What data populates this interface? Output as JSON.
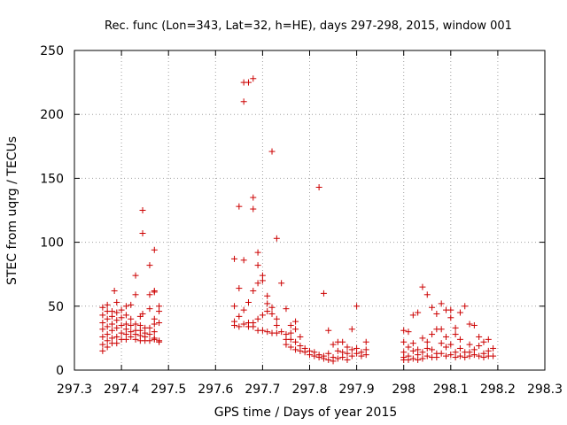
{
  "chart_data": {
    "type": "scatter",
    "title": "Rec. func (Lon=343, Lat=32, h=HE), days 297-298, 2015, window 001",
    "xlabel": "GPS time / Days of year 2015",
    "ylabel": "STEC from uqrg / TECUs",
    "xlim": [
      297.3,
      298.3
    ],
    "ylim": [
      0,
      250
    ],
    "xticks": [
      "297.3",
      "297.4",
      "297.5",
      "297.6",
      "297.7",
      "297.8",
      "297.9",
      "298",
      "298.1",
      "298.2",
      "298.3"
    ],
    "yticks": [
      "0",
      "50",
      "100",
      "150",
      "200",
      "250"
    ],
    "marker": "+",
    "color": "#cc0000",
    "grid": true,
    "legend": "none",
    "points": [
      [
        297.36,
        15
      ],
      [
        297.36,
        20
      ],
      [
        297.36,
        26
      ],
      [
        297.36,
        32
      ],
      [
        297.36,
        37
      ],
      [
        297.36,
        43
      ],
      [
        297.36,
        49
      ],
      [
        297.37,
        18
      ],
      [
        297.37,
        23
      ],
      [
        297.37,
        28
      ],
      [
        297.37,
        34
      ],
      [
        297.37,
        40
      ],
      [
        297.37,
        46
      ],
      [
        297.37,
        51
      ],
      [
        297.38,
        21
      ],
      [
        297.38,
        25
      ],
      [
        297.38,
        31
      ],
      [
        297.38,
        36
      ],
      [
        297.38,
        42
      ],
      [
        297.38,
        46
      ],
      [
        297.385,
        62
      ],
      [
        297.39,
        21
      ],
      [
        297.39,
        26
      ],
      [
        297.39,
        33
      ],
      [
        297.39,
        39
      ],
      [
        297.39,
        45
      ],
      [
        297.39,
        53
      ],
      [
        297.4,
        24
      ],
      [
        297.4,
        29
      ],
      [
        297.4,
        35
      ],
      [
        297.4,
        41
      ],
      [
        297.4,
        47
      ],
      [
        297.41,
        24
      ],
      [
        297.41,
        28
      ],
      [
        297.41,
        32
      ],
      [
        297.41,
        36
      ],
      [
        297.41,
        43
      ],
      [
        297.41,
        50
      ],
      [
        297.42,
        26
      ],
      [
        297.42,
        30
      ],
      [
        297.42,
        35
      ],
      [
        297.42,
        40
      ],
      [
        297.42,
        51
      ],
      [
        297.43,
        24
      ],
      [
        297.43,
        28
      ],
      [
        297.43,
        31
      ],
      [
        297.43,
        36
      ],
      [
        297.43,
        59
      ],
      [
        297.43,
        74
      ],
      [
        297.44,
        23
      ],
      [
        297.44,
        27
      ],
      [
        297.44,
        31
      ],
      [
        297.44,
        35
      ],
      [
        297.44,
        42
      ],
      [
        297.445,
        125
      ],
      [
        297.445,
        107
      ],
      [
        297.445,
        44
      ],
      [
        297.45,
        23
      ],
      [
        297.45,
        26
      ],
      [
        297.45,
        29
      ],
      [
        297.45,
        33
      ],
      [
        297.46,
        23
      ],
      [
        297.46,
        28
      ],
      [
        297.46,
        33
      ],
      [
        297.46,
        48
      ],
      [
        297.46,
        59
      ],
      [
        297.46,
        82
      ],
      [
        297.47,
        24
      ],
      [
        297.47,
        25
      ],
      [
        297.47,
        30
      ],
      [
        297.47,
        36
      ],
      [
        297.47,
        40
      ],
      [
        297.47,
        61
      ],
      [
        297.47,
        62
      ],
      [
        297.47,
        94
      ],
      [
        297.48,
        22
      ],
      [
        297.48,
        23
      ],
      [
        297.48,
        37
      ],
      [
        297.48,
        46
      ],
      [
        297.48,
        50
      ],
      [
        297.64,
        87
      ],
      [
        297.64,
        50
      ],
      [
        297.64,
        38
      ],
      [
        297.64,
        35
      ],
      [
        297.65,
        128
      ],
      [
        297.65,
        64
      ],
      [
        297.65,
        42
      ],
      [
        297.65,
        34
      ],
      [
        297.66,
        225
      ],
      [
        297.66,
        210
      ],
      [
        297.66,
        86
      ],
      [
        297.66,
        47
      ],
      [
        297.66,
        36
      ],
      [
        297.67,
        225
      ],
      [
        297.67,
        53
      ],
      [
        297.67,
        37
      ],
      [
        297.67,
        34
      ],
      [
        297.68,
        126
      ],
      [
        297.68,
        228
      ],
      [
        297.68,
        135
      ],
      [
        297.68,
        62
      ],
      [
        297.68,
        37
      ],
      [
        297.68,
        34
      ],
      [
        297.69,
        92
      ],
      [
        297.69,
        82
      ],
      [
        297.69,
        68
      ],
      [
        297.69,
        40
      ],
      [
        297.69,
        31
      ],
      [
        297.7,
        74
      ],
      [
        297.7,
        70
      ],
      [
        297.7,
        43
      ],
      [
        297.7,
        31
      ],
      [
        297.71,
        58
      ],
      [
        297.71,
        52
      ],
      [
        297.71,
        46
      ],
      [
        297.71,
        30
      ],
      [
        297.72,
        171
      ],
      [
        297.72,
        49
      ],
      [
        297.72,
        44
      ],
      [
        297.72,
        29
      ],
      [
        297.73,
        103
      ],
      [
        297.73,
        40
      ],
      [
        297.73,
        35
      ],
      [
        297.73,
        29
      ],
      [
        297.74,
        68
      ],
      [
        297.74,
        30
      ],
      [
        297.75,
        48
      ],
      [
        297.75,
        28
      ],
      [
        297.75,
        24
      ],
      [
        297.75,
        20
      ],
      [
        297.76,
        35
      ],
      [
        297.76,
        29
      ],
      [
        297.76,
        24
      ],
      [
        297.76,
        18
      ],
      [
        297.77,
        38
      ],
      [
        297.77,
        32
      ],
      [
        297.77,
        22
      ],
      [
        297.77,
        16
      ],
      [
        297.78,
        26
      ],
      [
        297.78,
        19
      ],
      [
        297.78,
        15
      ],
      [
        297.79,
        17
      ],
      [
        297.79,
        14
      ],
      [
        297.8,
        15
      ],
      [
        297.8,
        12
      ],
      [
        297.81,
        14
      ],
      [
        297.81,
        11
      ],
      [
        297.82,
        143
      ],
      [
        297.82,
        12
      ],
      [
        297.82,
        10
      ],
      [
        297.83,
        60
      ],
      [
        297.83,
        11
      ],
      [
        297.83,
        9
      ],
      [
        297.84,
        31
      ],
      [
        297.84,
        13
      ],
      [
        297.84,
        8
      ],
      [
        297.85,
        20
      ],
      [
        297.85,
        10
      ],
      [
        297.85,
        7
      ],
      [
        297.86,
        22
      ],
      [
        297.86,
        15
      ],
      [
        297.86,
        9
      ],
      [
        297.87,
        22
      ],
      [
        297.87,
        14
      ],
      [
        297.87,
        10
      ],
      [
        297.88,
        18
      ],
      [
        297.88,
        13
      ],
      [
        297.88,
        8
      ],
      [
        297.89,
        32
      ],
      [
        297.89,
        16
      ],
      [
        297.89,
        11
      ],
      [
        297.9,
        50
      ],
      [
        297.9,
        17
      ],
      [
        297.9,
        13
      ],
      [
        297.91,
        14
      ],
      [
        297.91,
        11
      ],
      [
        297.92,
        22
      ],
      [
        297.92,
        16
      ],
      [
        297.92,
        12
      ],
      [
        298.0,
        31
      ],
      [
        298.0,
        22
      ],
      [
        298.0,
        14
      ],
      [
        298.0,
        10
      ],
      [
        298.0,
        8
      ],
      [
        298.01,
        30
      ],
      [
        298.01,
        18
      ],
      [
        298.01,
        11
      ],
      [
        298.01,
        8
      ],
      [
        298.02,
        43
      ],
      [
        298.02,
        21
      ],
      [
        298.02,
        15
      ],
      [
        298.02,
        9
      ],
      [
        298.03,
        45
      ],
      [
        298.03,
        16
      ],
      [
        298.03,
        12
      ],
      [
        298.03,
        8
      ],
      [
        298.04,
        65
      ],
      [
        298.04,
        25
      ],
      [
        298.04,
        14
      ],
      [
        298.04,
        9
      ],
      [
        298.05,
        59
      ],
      [
        298.05,
        22
      ],
      [
        298.05,
        17
      ],
      [
        298.05,
        11
      ],
      [
        298.06,
        49
      ],
      [
        298.06,
        28
      ],
      [
        298.06,
        16
      ],
      [
        298.06,
        10
      ],
      [
        298.07,
        44
      ],
      [
        298.07,
        32
      ],
      [
        298.07,
        13
      ],
      [
        298.07,
        10
      ],
      [
        298.08,
        52
      ],
      [
        298.08,
        32
      ],
      [
        298.08,
        21
      ],
      [
        298.08,
        13
      ],
      [
        298.09,
        47
      ],
      [
        298.09,
        26
      ],
      [
        298.09,
        18
      ],
      [
        298.09,
        11
      ],
      [
        298.1,
        47
      ],
      [
        298.1,
        41
      ],
      [
        298.1,
        20
      ],
      [
        298.1,
        12
      ],
      [
        298.11,
        33
      ],
      [
        298.11,
        28
      ],
      [
        298.11,
        14
      ],
      [
        298.11,
        10
      ],
      [
        298.12,
        45
      ],
      [
        298.12,
        24
      ],
      [
        298.12,
        17
      ],
      [
        298.12,
        11
      ],
      [
        298.13,
        50
      ],
      [
        298.13,
        14
      ],
      [
        298.13,
        10
      ],
      [
        298.14,
        36
      ],
      [
        298.14,
        20
      ],
      [
        298.14,
        14
      ],
      [
        298.14,
        11
      ],
      [
        298.15,
        35
      ],
      [
        298.15,
        16
      ],
      [
        298.15,
        12
      ],
      [
        298.16,
        26
      ],
      [
        298.16,
        19
      ],
      [
        298.16,
        11
      ],
      [
        298.17,
        22
      ],
      [
        298.17,
        13
      ],
      [
        298.17,
        10
      ],
      [
        298.18,
        24
      ],
      [
        298.18,
        15
      ],
      [
        298.18,
        11
      ],
      [
        298.19,
        17
      ],
      [
        298.19,
        11
      ]
    ]
  }
}
